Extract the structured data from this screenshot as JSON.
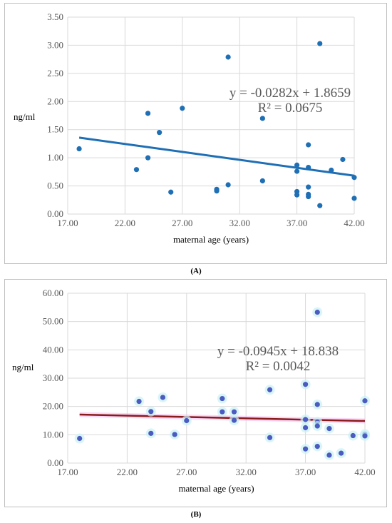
{
  "chart_data": [
    {
      "type": "scatter",
      "panel_label": "(A)",
      "title": "",
      "xlabel": "maternal age (years)",
      "ylabel": "ng/ml",
      "xlim": [
        17,
        42
      ],
      "ylim": [
        0,
        3.5
      ],
      "xticks": [
        "17.00",
        "22.00",
        "27.00",
        "32.00",
        "37.00",
        "42.00"
      ],
      "yticks": [
        "0.00",
        "0.50",
        "1.00",
        "1.50",
        "2.00",
        "2.50",
        "3.00",
        "3.50"
      ],
      "grid": "vertical-and-horizontal",
      "point_color": "#1f6fb5",
      "trend_color": "#1f6fb5",
      "trendline": {
        "slope": -0.0282,
        "intercept": 1.8659
      },
      "equation": "y = -0.0282x + 1.8659",
      "r_squared": "R² = 0.0675",
      "points": [
        [
          18,
          1.16
        ],
        [
          23,
          0.79
        ],
        [
          24,
          1.79
        ],
        [
          24,
          1.0
        ],
        [
          25,
          1.45
        ],
        [
          26,
          0.39
        ],
        [
          27,
          1.88
        ],
        [
          30,
          0.44
        ],
        [
          30,
          0.41
        ],
        [
          31,
          2.79
        ],
        [
          31,
          0.52
        ],
        [
          34,
          1.7
        ],
        [
          34,
          0.59
        ],
        [
          37,
          0.87
        ],
        [
          37,
          0.76
        ],
        [
          37,
          0.4
        ],
        [
          37,
          0.34
        ],
        [
          38,
          1.23
        ],
        [
          38,
          0.83
        ],
        [
          38,
          0.48
        ],
        [
          38,
          0.35
        ],
        [
          38,
          0.31
        ],
        [
          39,
          3.03
        ],
        [
          39,
          0.15
        ],
        [
          40,
          0.78
        ],
        [
          41,
          0.97
        ],
        [
          42,
          0.65
        ],
        [
          42,
          0.28
        ]
      ]
    },
    {
      "type": "scatter",
      "panel_label": "(B)",
      "title": "",
      "xlabel": "maternal age (years)",
      "ylabel": "ng/ml",
      "xlim": [
        17,
        42
      ],
      "ylim": [
        0,
        60
      ],
      "xticks": [
        "17.00",
        "22.00",
        "27.00",
        "32.00",
        "37.00",
        "42.00"
      ],
      "yticks": [
        "0.00",
        "10.00",
        "20.00",
        "30.00",
        "40.00",
        "50.00",
        "60.00"
      ],
      "grid": "vertical-and-horizontal",
      "point_color": "#4b5bbf",
      "trend_color": "#8b1a1a",
      "trendline": {
        "slope": -0.0945,
        "intercept": 18.838
      },
      "equation": "y = -0.0945x + 18.838",
      "r_squared": "R² = 0.0042",
      "points": [
        [
          18,
          8.7
        ],
        [
          23,
          21.8
        ],
        [
          24,
          18.2
        ],
        [
          24,
          10.5
        ],
        [
          25,
          23.2
        ],
        [
          26,
          10.1
        ],
        [
          27,
          15.0
        ],
        [
          30,
          22.8
        ],
        [
          30,
          18.1
        ],
        [
          31,
          18.1
        ],
        [
          31,
          15.1
        ],
        [
          34,
          25.9
        ],
        [
          34,
          9.0
        ],
        [
          37,
          27.8
        ],
        [
          37,
          15.4
        ],
        [
          37,
          12.5
        ],
        [
          37,
          5.0
        ],
        [
          38,
          53.3
        ],
        [
          38,
          20.7
        ],
        [
          38,
          14.5
        ],
        [
          38,
          13.1
        ],
        [
          38,
          5.9
        ],
        [
          39,
          12.2
        ],
        [
          39,
          2.8
        ],
        [
          40,
          3.5
        ],
        [
          41,
          9.7
        ],
        [
          42,
          22.0
        ],
        [
          42,
          10.2
        ],
        [
          42,
          9.6
        ]
      ]
    }
  ]
}
